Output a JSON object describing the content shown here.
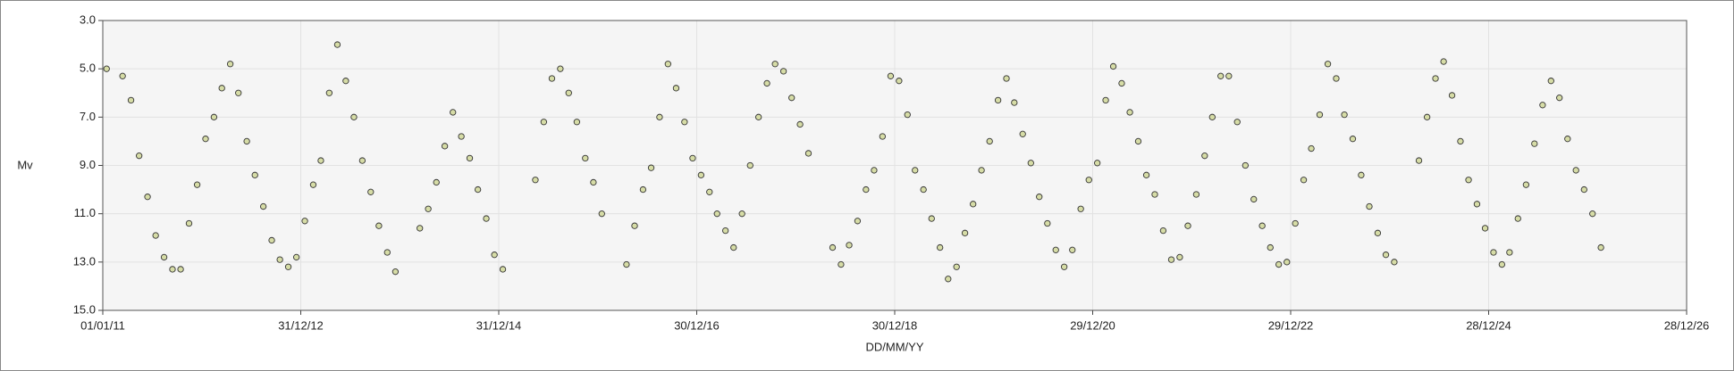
{
  "chart_data": {
    "type": "scatter",
    "x_label": "DD/MM/YY",
    "y_label": "Mv",
    "xlim": [
      "2011-01-01",
      "2026-12-28"
    ],
    "xticks": [
      {
        "value": "2011-01-01",
        "label": "01/01/11"
      },
      {
        "value": "2012-12-31",
        "label": "31/12/12"
      },
      {
        "value": "2014-12-31",
        "label": "31/12/14"
      },
      {
        "value": "2016-12-30",
        "label": "30/12/16"
      },
      {
        "value": "2018-12-30",
        "label": "30/12/18"
      },
      {
        "value": "2020-12-29",
        "label": "29/12/20"
      },
      {
        "value": "2022-12-29",
        "label": "29/12/22"
      },
      {
        "value": "2024-12-28",
        "label": "28/12/24"
      },
      {
        "value": "2026-12-28",
        "label": "28/12/26"
      }
    ],
    "ylim": [
      15,
      3
    ],
    "yticks": [
      {
        "value": 3,
        "label": "3.0"
      },
      {
        "value": 5,
        "label": "5.0"
      },
      {
        "value": 7,
        "label": "7.0"
      },
      {
        "value": 9,
        "label": "9.0"
      },
      {
        "value": 11,
        "label": "11.0"
      },
      {
        "value": 13,
        "label": "13.0"
      },
      {
        "value": 15,
        "label": "15.0"
      }
    ],
    "grid": true,
    "color": "#d6dca6",
    "x": [
      "2011-01-15",
      "2011-03-15",
      "2011-04-15",
      "2011-05-15",
      "2011-06-15",
      "2011-07-15",
      "2011-08-15",
      "2011-09-15",
      "2011-10-15",
      "2011-11-15",
      "2011-12-15",
      "2012-01-15",
      "2012-02-15",
      "2012-03-15",
      "2012-04-15",
      "2012-05-15",
      "2012-06-15",
      "2012-07-15",
      "2012-08-15",
      "2012-09-15",
      "2012-10-15",
      "2012-11-15",
      "2012-12-15",
      "2013-01-15",
      "2013-02-15",
      "2013-03-15",
      "2013-04-15",
      "2013-05-15",
      "2013-06-15",
      "2013-07-15",
      "2013-08-15",
      "2013-09-15",
      "2013-10-15",
      "2013-11-15",
      "2013-12-15",
      "2014-03-15",
      "2014-04-15",
      "2014-05-15",
      "2014-06-15",
      "2014-07-15",
      "2014-08-15",
      "2014-09-15",
      "2014-10-15",
      "2014-11-15",
      "2014-12-15",
      "2015-01-15",
      "2015-05-15",
      "2015-06-15",
      "2015-07-15",
      "2015-08-15",
      "2015-09-15",
      "2015-10-15",
      "2015-11-15",
      "2015-12-15",
      "2016-01-15",
      "2016-04-15",
      "2016-05-15",
      "2016-06-15",
      "2016-07-15",
      "2016-08-15",
      "2016-09-15",
      "2016-10-15",
      "2016-11-15",
      "2016-12-15",
      "2017-01-15",
      "2017-02-15",
      "2017-03-15",
      "2017-04-15",
      "2017-05-15",
      "2017-06-15",
      "2017-07-15",
      "2017-08-15",
      "2017-09-15",
      "2017-10-15",
      "2017-11-15",
      "2017-12-15",
      "2018-01-15",
      "2018-02-15",
      "2018-05-15",
      "2018-06-15",
      "2018-07-15",
      "2018-08-15",
      "2018-09-15",
      "2018-10-15",
      "2018-11-15",
      "2018-12-15",
      "2019-01-15",
      "2019-02-15",
      "2019-03-15",
      "2019-04-15",
      "2019-05-15",
      "2019-06-15",
      "2019-07-15",
      "2019-08-15",
      "2019-09-15",
      "2019-10-15",
      "2019-11-15",
      "2019-12-15",
      "2020-01-15",
      "2020-02-15",
      "2020-03-15",
      "2020-04-15",
      "2020-05-15",
      "2020-06-15",
      "2020-07-15",
      "2020-08-15",
      "2020-09-15",
      "2020-10-15",
      "2020-11-15",
      "2020-12-15",
      "2021-01-15",
      "2021-02-15",
      "2021-03-15",
      "2021-04-15",
      "2021-05-15",
      "2021-06-15",
      "2021-07-15",
      "2021-08-15",
      "2021-09-15",
      "2021-10-15",
      "2021-11-15",
      "2021-12-15",
      "2022-01-15",
      "2022-02-15",
      "2022-03-15",
      "2022-04-15",
      "2022-05-15",
      "2022-06-15",
      "2022-07-15",
      "2022-08-15",
      "2022-09-15",
      "2022-10-15",
      "2022-11-15",
      "2022-12-15",
      "2023-01-15",
      "2023-02-15",
      "2023-03-15",
      "2023-04-15",
      "2023-05-15",
      "2023-06-15",
      "2023-07-15",
      "2023-08-15",
      "2023-09-15",
      "2023-10-15",
      "2023-11-15",
      "2023-12-15",
      "2024-01-15",
      "2024-04-15",
      "2024-05-15",
      "2024-06-15",
      "2024-07-15",
      "2024-08-15",
      "2024-09-15",
      "2024-10-15",
      "2024-11-15",
      "2024-12-15",
      "2025-01-15",
      "2025-02-15",
      "2025-03-15",
      "2025-04-15",
      "2025-05-15",
      "2025-06-15",
      "2025-07-15",
      "2025-08-15",
      "2025-09-15",
      "2025-10-15",
      "2025-11-15",
      "2025-12-15",
      "2026-01-15",
      "2026-02-15"
    ],
    "values": [
      5.0,
      5.3,
      6.3,
      8.6,
      10.3,
      11.9,
      12.8,
      13.3,
      13.3,
      11.4,
      9.8,
      7.9,
      7.0,
      5.8,
      4.8,
      6.0,
      8.0,
      9.4,
      10.7,
      12.1,
      12.9,
      13.2,
      12.8,
      11.3,
      9.8,
      8.8,
      6.0,
      4.0,
      5.5,
      7.0,
      8.8,
      10.1,
      11.5,
      12.6,
      13.4,
      11.6,
      10.8,
      9.7,
      8.2,
      6.8,
      7.8,
      8.7,
      10.0,
      11.2,
      12.7,
      13.3,
      9.6,
      7.2,
      5.4,
      5.0,
      6.0,
      7.2,
      8.7,
      9.7,
      11.0,
      13.1,
      11.5,
      10.0,
      9.1,
      7.0,
      4.8,
      5.8,
      7.2,
      8.7,
      9.4,
      10.1,
      11.0,
      11.7,
      12.4,
      11.0,
      9.0,
      7.0,
      5.6,
      4.8,
      5.1,
      6.2,
      7.3,
      8.5,
      12.4,
      13.1,
      12.3,
      11.3,
      10.0,
      9.2,
      7.8,
      5.3,
      5.5,
      6.9,
      9.2,
      10.0,
      11.2,
      12.4,
      13.7,
      13.2,
      11.8,
      10.6,
      9.2,
      8.0,
      6.3,
      5.4,
      6.4,
      7.7,
      8.9,
      10.3,
      11.4,
      12.5,
      13.2,
      12.5,
      10.8,
      9.6,
      8.9,
      6.3,
      4.9,
      5.6,
      6.8,
      8.0,
      9.4,
      10.2,
      11.7,
      12.9,
      12.8,
      11.5,
      10.2,
      8.6,
      7.0,
      5.3,
      5.3,
      7.2,
      9.0,
      10.4,
      11.5,
      12.4,
      13.1,
      13.0,
      11.4,
      9.6,
      8.3,
      6.9,
      4.8,
      5.4,
      6.9,
      7.9,
      9.4,
      10.7,
      11.8,
      12.7,
      13.0,
      8.8,
      7.0,
      5.4,
      4.7,
      6.1,
      8.0,
      9.6,
      10.6,
      11.6,
      12.6,
      13.1,
      12.6,
      11.2,
      9.8,
      8.1,
      6.5,
      5.5,
      6.2,
      7.9,
      9.2,
      10.0,
      11.0,
      12.4
    ]
  }
}
